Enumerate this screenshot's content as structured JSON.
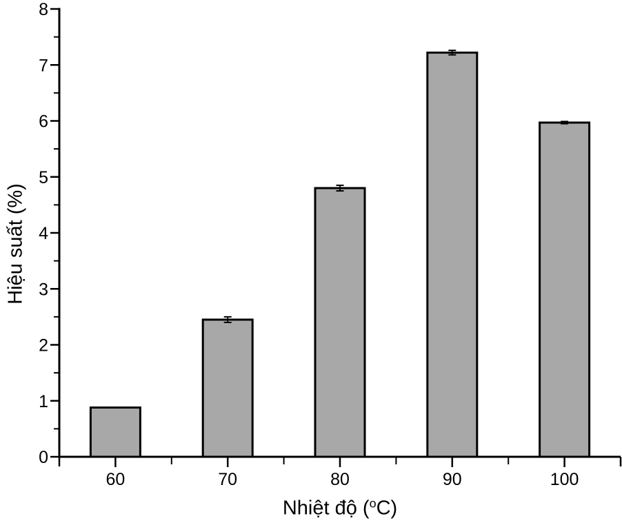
{
  "chart_data": {
    "type": "bar",
    "title": "",
    "categories": [
      "60",
      "70",
      "80",
      "90",
      "100"
    ],
    "values": [
      0.88,
      2.45,
      4.8,
      7.22,
      5.97
    ],
    "errors": [
      0,
      0.05,
      0.05,
      0.04,
      0.02
    ],
    "xlabel": "Nhiệt độ (°C)",
    "xlabel_parts": {
      "prefix": "Nhiệt độ (",
      "sup": "o",
      "suffix": "C)"
    },
    "ylabel": "Hiệu suất (%)",
    "ylim": [
      0,
      8
    ],
    "y_tick_labels": [
      "0",
      "1",
      "2",
      "3",
      "4",
      "5",
      "6",
      "7",
      "8"
    ],
    "y_major_tick_step": 1,
    "y_minor_tick_step": 0.5,
    "grid": false,
    "legend": null,
    "colors": {
      "bar_fill": "#a8a8a8",
      "bar_border": "#000000",
      "axis": "#000000",
      "text": "#000000",
      "background": "#ffffff"
    }
  }
}
